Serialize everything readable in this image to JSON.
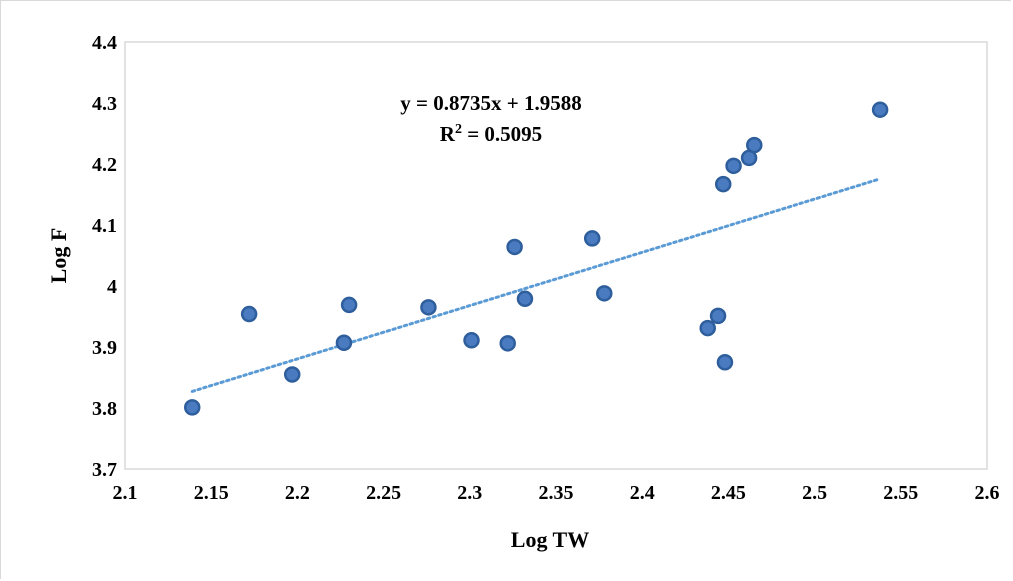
{
  "chart_data": {
    "type": "scatter",
    "xlabel": "Log TW",
    "ylabel": "Log F",
    "xlim": [
      2.1,
      2.6
    ],
    "ylim": [
      3.7,
      4.4
    ],
    "x_ticks": [
      "2.1",
      "2.15",
      "2.2",
      "2.25",
      "2.3",
      "2.35",
      "2.4",
      "2.45",
      "2.5",
      "2.55",
      "2.6"
    ],
    "y_ticks": [
      "3.7",
      "3.8",
      "3.9",
      "4",
      "4.1",
      "4.2",
      "4.3",
      "4.4"
    ],
    "grid": false,
    "legend": "none",
    "points": [
      {
        "x": 2.139,
        "y": 3.801
      },
      {
        "x": 2.172,
        "y": 3.954
      },
      {
        "x": 2.197,
        "y": 3.855
      },
      {
        "x": 2.227,
        "y": 3.907
      },
      {
        "x": 2.23,
        "y": 3.969
      },
      {
        "x": 2.276,
        "y": 3.965
      },
      {
        "x": 2.301,
        "y": 3.911
      },
      {
        "x": 2.322,
        "y": 3.906
      },
      {
        "x": 2.326,
        "y": 4.064
      },
      {
        "x": 2.332,
        "y": 3.979
      },
      {
        "x": 2.371,
        "y": 4.078
      },
      {
        "x": 2.378,
        "y": 3.988
      },
      {
        "x": 2.438,
        "y": 3.931
      },
      {
        "x": 2.444,
        "y": 3.951
      },
      {
        "x": 2.447,
        "y": 4.167
      },
      {
        "x": 2.448,
        "y": 3.875
      },
      {
        "x": 2.453,
        "y": 4.197
      },
      {
        "x": 2.462,
        "y": 4.21
      },
      {
        "x": 2.465,
        "y": 4.231
      },
      {
        "x": 2.538,
        "y": 4.289
      }
    ],
    "trendline": {
      "type": "linear",
      "slope": 0.8735,
      "intercept": 1.9588,
      "x_range": [
        2.139,
        2.538
      ],
      "equation_label": "y = 0.8735x + 1.9588",
      "r2_prefix": "R",
      "r2_sup": "2",
      "r2_value": " = 0.5095"
    },
    "colors": {
      "marker": "#2e5e9c",
      "marker_inner": "#4a7bc0",
      "trendline": "#5b9bd5",
      "plot_border": "#d9d9d9"
    }
  }
}
